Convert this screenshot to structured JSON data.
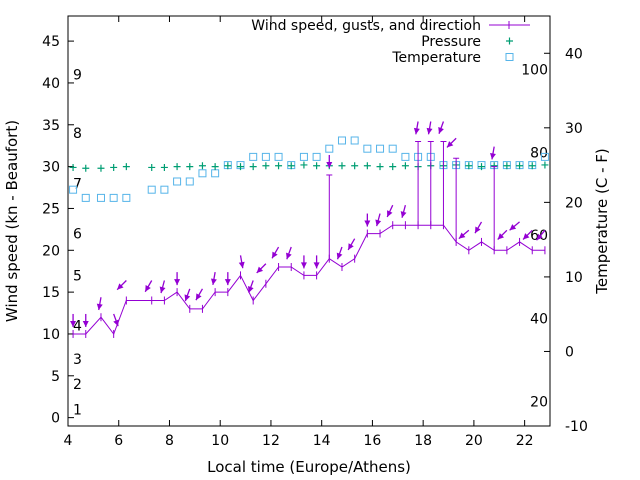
{
  "chart_data": {
    "type": "line",
    "xlabel": "Local time (Europe/Athens)",
    "ylabel": "Wind speed (kn - Beaufort)",
    "y2label": "Temperature (C - F)",
    "xlim": [
      4.0,
      23.0
    ],
    "ylim": [
      -1,
      48
    ],
    "y2lim": [
      -10,
      45
    ],
    "xticks": [
      4,
      6,
      8,
      10,
      12,
      14,
      16,
      18,
      20,
      22
    ],
    "yticks": [
      0,
      5,
      10,
      15,
      20,
      25,
      30,
      35,
      40,
      45
    ],
    "y2ticks": [
      -10,
      0,
      10,
      20,
      30,
      40
    ],
    "fahrenheit_labels": [
      {
        "label": "20",
        "celsius": -6.7
      },
      {
        "label": "40",
        "celsius": 4.4
      },
      {
        "label": "60",
        "celsius": 15.6
      },
      {
        "label": "80",
        "celsius": 26.7
      },
      {
        "label": "100",
        "celsius": 37.8
      }
    ],
    "beaufort_labels": [
      {
        "label": "1",
        "kn": 1
      },
      {
        "label": "2",
        "kn": 4
      },
      {
        "label": "3",
        "kn": 7
      },
      {
        "label": "4",
        "kn": 11
      },
      {
        "label": "5",
        "kn": 17
      },
      {
        "label": "6",
        "kn": 22
      },
      {
        "label": "7",
        "kn": 28
      },
      {
        "label": "8",
        "kn": 34
      },
      {
        "label": "9",
        "kn": 41
      }
    ],
    "legend": {
      "position": "top-right",
      "entries": [
        {
          "label": "Wind speed, gusts, and direction",
          "color": "#9400d3",
          "marker": "line"
        },
        {
          "label": "Pressure",
          "color": "#009e73",
          "marker": "plus"
        },
        {
          "label": "Temperature",
          "color": "#56b4e9",
          "marker": "square"
        }
      ]
    },
    "series": [
      {
        "key": "wind",
        "axis": "y",
        "color": "#9400d3",
        "x": [
          4.2,
          4.7,
          5.3,
          5.8,
          6.3,
          7.3,
          7.8,
          8.3,
          8.8,
          9.3,
          9.8,
          10.3,
          10.8,
          11.3,
          11.8,
          12.3,
          12.8,
          13.3,
          13.8,
          14.3,
          14.8,
          15.3,
          15.8,
          16.3,
          16.8,
          17.3,
          17.8,
          18.3,
          18.8,
          19.3,
          19.8,
          20.3,
          20.8,
          21.3,
          21.8,
          22.3,
          22.8
        ],
        "y": [
          10,
          10,
          12,
          10,
          14,
          14,
          14,
          15,
          13,
          13,
          15,
          15,
          17,
          14,
          16,
          18,
          18,
          17,
          17,
          19,
          18,
          19,
          22,
          22,
          23,
          23,
          23,
          23,
          23,
          21,
          20,
          21,
          20,
          20,
          21,
          20,
          20
        ],
        "gust": [
          null,
          null,
          null,
          null,
          null,
          null,
          null,
          null,
          null,
          null,
          null,
          null,
          null,
          null,
          null,
          null,
          null,
          null,
          null,
          29,
          null,
          null,
          null,
          null,
          null,
          null,
          33,
          33,
          33,
          31,
          null,
          null,
          30,
          null,
          null,
          null,
          null
        ],
        "dir_deg": [
          0,
          0,
          10,
          340,
          45,
          30,
          15,
          0,
          20,
          30,
          10,
          0,
          350,
          20,
          45,
          30,
          20,
          0,
          0,
          0,
          20,
          30,
          0,
          15,
          25,
          15,
          10,
          10,
          20,
          45,
          50,
          30,
          10,
          45,
          50,
          45,
          40
        ]
      },
      {
        "key": "pressure",
        "axis": "y",
        "color": "#009e73",
        "marker": "plus",
        "x": [
          4.2,
          4.7,
          5.3,
          5.8,
          6.3,
          7.3,
          7.8,
          8.3,
          8.8,
          9.3,
          9.8,
          10.3,
          10.8,
          11.3,
          11.8,
          12.3,
          12.8,
          13.3,
          13.8,
          14.3,
          14.8,
          15.3,
          15.8,
          16.3,
          16.8,
          17.3,
          17.8,
          18.3,
          18.8,
          19.3,
          19.8,
          20.3,
          20.8,
          21.3,
          21.8,
          22.3,
          22.8
        ],
        "y": [
          29.9,
          29.8,
          29.8,
          29.9,
          30.0,
          29.9,
          29.9,
          30.0,
          30.0,
          30.1,
          30.0,
          30.1,
          30.0,
          30.0,
          30.1,
          30.1,
          30.1,
          30.2,
          30.1,
          30.1,
          30.1,
          30.1,
          30.1,
          30.0,
          30.0,
          30.1,
          30.0,
          30.1,
          30.1,
          30.2,
          30.1,
          30.0,
          30.1,
          30.1,
          30.1,
          30.1,
          30.2
        ]
      },
      {
        "key": "temperature",
        "axis": "y2",
        "color": "#56b4e9",
        "marker": "square",
        "x": [
          4.2,
          4.7,
          5.3,
          5.8,
          6.3,
          7.3,
          7.8,
          8.3,
          8.8,
          9.3,
          9.8,
          10.3,
          10.8,
          11.3,
          11.8,
          12.3,
          12.8,
          13.3,
          13.8,
          14.3,
          14.8,
          15.3,
          15.8,
          16.3,
          16.8,
          17.3,
          17.8,
          18.3,
          18.8,
          19.3,
          19.8,
          20.3,
          20.8,
          21.3,
          21.8,
          22.3,
          22.8
        ],
        "y": [
          21.7,
          20.6,
          20.6,
          20.6,
          20.6,
          21.7,
          21.7,
          22.8,
          22.8,
          23.9,
          23.9,
          25.0,
          25.0,
          26.1,
          26.1,
          26.1,
          25.0,
          26.1,
          26.1,
          27.2,
          28.3,
          28.3,
          27.2,
          27.2,
          27.2,
          26.1,
          26.1,
          26.1,
          25.0,
          25.0,
          25.0,
          25.0,
          25.0,
          25.0,
          25.0,
          25.0,
          26.1
        ]
      }
    ]
  }
}
